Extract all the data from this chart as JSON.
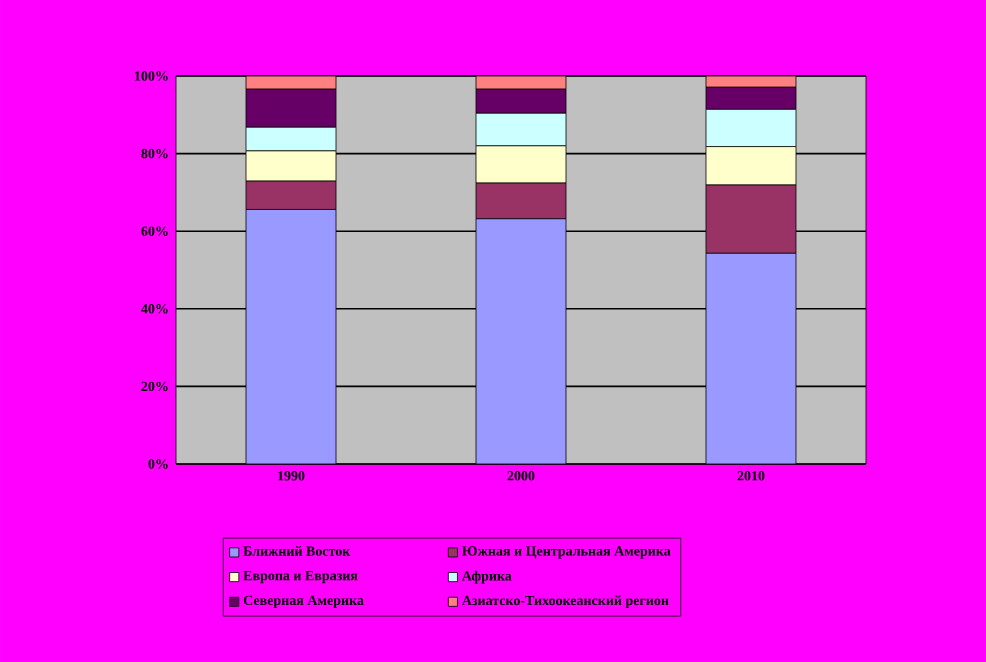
{
  "chart_data": {
    "type": "bar",
    "stacked": true,
    "categories": [
      "1990",
      "2000",
      "2010"
    ],
    "series": [
      {
        "name": "Ближний Восток",
        "color": "#9999ff",
        "values": [
          65.6,
          63.2,
          54.3
        ]
      },
      {
        "name": "Южная и Центральная Америка",
        "color": "#993366",
        "values": [
          7.3,
          9.2,
          17.6
        ]
      },
      {
        "name": "Европа и Евразия",
        "color": "#ffffcc",
        "values": [
          7.8,
          9.6,
          9.9
        ]
      },
      {
        "name": "Африка",
        "color": "#ccffff",
        "values": [
          6.1,
          8.4,
          9.6
        ]
      },
      {
        "name": "Северная Америка",
        "color": "#660066",
        "values": [
          9.8,
          6.2,
          5.7
        ]
      },
      {
        "name": "Азиатско-Тихоокеанский регион",
        "color": "#ff8080",
        "values": [
          3.4,
          3.4,
          2.9
        ]
      }
    ],
    "ylim": [
      0,
      100
    ],
    "yticks": [
      {
        "value": 0,
        "label": "0%"
      },
      {
        "value": 20,
        "label": "20%"
      },
      {
        "value": 40,
        "label": "40%"
      },
      {
        "value": 60,
        "label": "60%"
      },
      {
        "value": 80,
        "label": "80%"
      },
      {
        "value": 100,
        "label": "100%"
      }
    ],
    "grid": "y",
    "legend": "bottom"
  }
}
